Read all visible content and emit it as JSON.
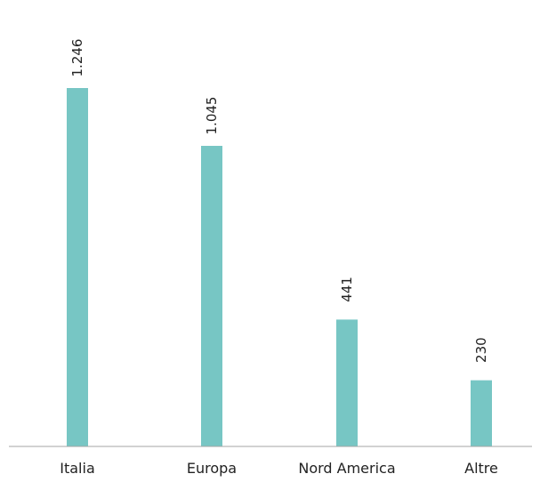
{
  "chart_data": {
    "type": "bar",
    "categories": [
      "Italia",
      "Europa",
      "Nord America",
      "Altre"
    ],
    "values": [
      1246,
      1045,
      441,
      230
    ],
    "value_labels": [
      "1.246",
      "1.045",
      "441",
      "230"
    ],
    "title": "",
    "xlabel": "",
    "ylabel": "",
    "ylim": [
      0,
      1246
    ],
    "grid": false,
    "legend": "none",
    "bar_color": "#77c6c4",
    "axis_color": "#a6a6a6"
  }
}
